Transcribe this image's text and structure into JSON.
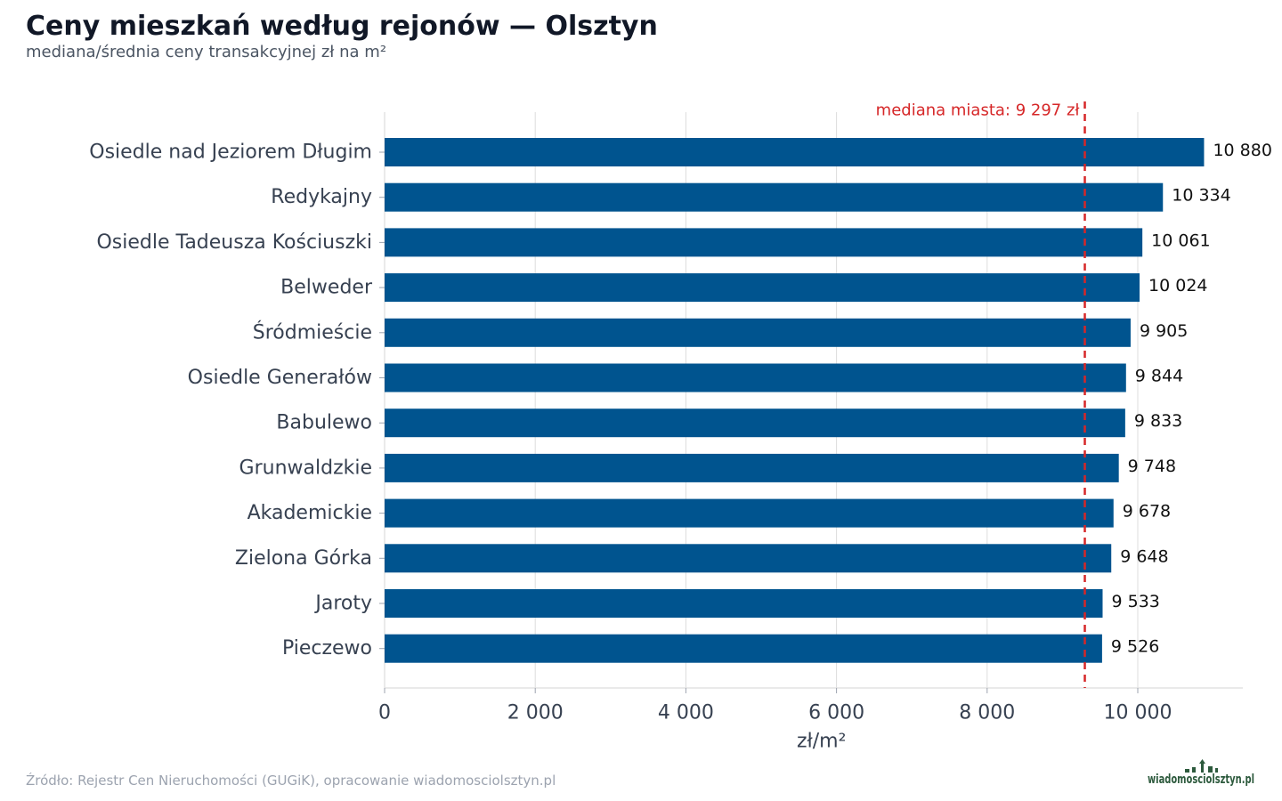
{
  "header": {
    "title": "Ceny mieszkań według rejonów — Olsztyn",
    "subtitle": "mediana/średnia ceny transakcyjnej zł na m²"
  },
  "footer": {
    "source": "Źródło: Rejestr Cen Nieruchomości (GUGiK), opracowanie wiadomosciolsztyn.pl",
    "logo_text": "wiadomosciolsztyn.pl"
  },
  "colors": {
    "bar": "#00548f",
    "median_line": "#d62728",
    "grid": "#dddddd",
    "logo": "#2d5a3d"
  },
  "chart_data": {
    "type": "bar",
    "orientation": "horizontal",
    "categories": [
      "Osiedle nad Jeziorem Długim",
      "Redykajny",
      "Osiedle Tadeusza Kościuszki",
      "Belweder",
      "Śródmieście",
      "Osiedle Generałów",
      "Babulewo",
      "Grunwaldzkie",
      "Akademickie",
      "Zielona Górka",
      "Jaroty",
      "Pieczewo"
    ],
    "values": [
      10880,
      10334,
      10061,
      10024,
      9905,
      9844,
      9833,
      9748,
      9678,
      9648,
      9533,
      9526
    ],
    "value_labels": [
      "10 880",
      "10 334",
      "10 061",
      "10 024",
      "9 905",
      "9 844",
      "9 833",
      "9 748",
      "9 678",
      "9 648",
      "9 533",
      "9 526"
    ],
    "xlabel": "zł/m²",
    "ylabel": "",
    "xlim": [
      0,
      11420
    ],
    "xticks": [
      0,
      2000,
      4000,
      6000,
      8000,
      10000
    ],
    "xtick_labels": [
      "0",
      "2 000",
      "4 000",
      "6 000",
      "8 000",
      "10 000"
    ],
    "grid": "vertical",
    "reference_line": {
      "value": 9297,
      "label": "mediana miasta: 9 297 zł",
      "style": "dashed"
    }
  }
}
